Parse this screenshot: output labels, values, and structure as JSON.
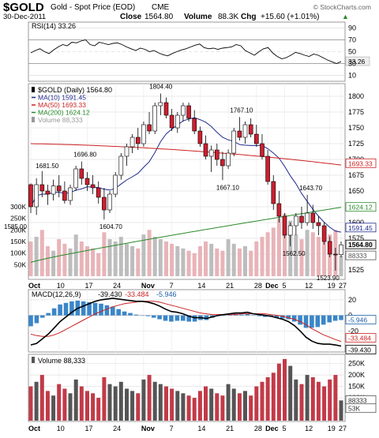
{
  "header": {
    "ticker": "$GOLD",
    "name": "Gold - Spot Price (EOD)",
    "exchange": "CME",
    "date": "30-Dec-2011",
    "close_label": "Close",
    "close_value": "1564.80",
    "volume_label": "Volume",
    "volume_value": "88.3K",
    "chg_label": "Chg",
    "chg_value": "+15.60 (+1.01%)",
    "chg_arrow": "▲",
    "watermark": "© StockCharts.com"
  },
  "rsi": {
    "label": "RSI(14) 33.26",
    "ticks": [
      "90",
      "70",
      "50",
      "30",
      "10"
    ],
    "value_tag": "33.26",
    "values": [
      48,
      52,
      55,
      50,
      47,
      53,
      58,
      62,
      60,
      66,
      65,
      68,
      70,
      62,
      60,
      66,
      64,
      62,
      64,
      65,
      62,
      58,
      55,
      52,
      56,
      54,
      50,
      52,
      48,
      45,
      43,
      47,
      50,
      53,
      55,
      58,
      61,
      63,
      57,
      55,
      56,
      54,
      56,
      57,
      58,
      62,
      60,
      52,
      48,
      44,
      50,
      55,
      57,
      48,
      42,
      38,
      40,
      44,
      49,
      47,
      44,
      42,
      46,
      44,
      40,
      36,
      33,
      30,
      33.26
    ]
  },
  "price": {
    "legend": [
      {
        "text": "$GOLD (Daily) 1564.80",
        "color": "#000000",
        "icon": "bar-icon"
      },
      {
        "text": "MA(10) 1591.45",
        "color": "#1f2a8c",
        "icon": "line-icon"
      },
      {
        "text": "MA(50) 1693.33",
        "color": "#cc2222",
        "icon": "line-icon"
      },
      {
        "text": "MA(200) 1624.12",
        "color": "#2a8a2a",
        "icon": "line-icon"
      },
      {
        "text": "Volume 88,333",
        "color": "#999999",
        "icon": "bar-icon"
      }
    ],
    "ticks": [
      "1800",
      "1775",
      "1750",
      "1725",
      "1700",
      "1675",
      "1650",
      "1625",
      "1600",
      "1575",
      "1550",
      "1525"
    ],
    "vol_ticks": [
      "300K",
      "250K",
      "200K",
      "150K",
      "100K",
      "50K"
    ],
    "annotations": [
      "1681.50",
      "1696.80",
      "1604.70",
      "1804.40",
      "1667.10",
      "1767.10",
      "1643.70",
      "1562.50",
      "1523.90",
      "1585.00"
    ],
    "tags": [
      {
        "text": "1693.33",
        "color": "#cc2222"
      },
      {
        "text": "1624.12",
        "color": "#2a8a2a"
      },
      {
        "text": "1591.45",
        "color": "#1f2a8c"
      },
      {
        "text": "1564.80",
        "color": "#000000"
      },
      {
        "text": "88333",
        "color": "#555555"
      }
    ],
    "x_labels": [
      "Oct",
      "10",
      "17",
      "24",
      "Nov",
      "7",
      "14",
      "21",
      "28",
      "Dec",
      "5",
      "12",
      "19",
      "27"
    ]
  },
  "macd": {
    "label": "MACD(12,26,9)",
    "v1": "-39.430",
    "v2": "-33.484",
    "v3": "-5.946",
    "ticks": [
      "20",
      "0",
      "-20"
    ],
    "tags": [
      "-5.946",
      "-33.484",
      "-39.430"
    ],
    "line": [
      -38,
      -36,
      -30,
      -24,
      -16,
      -8,
      -2,
      4,
      9,
      12,
      15,
      18,
      20,
      21,
      22,
      21,
      20,
      19,
      18,
      18,
      17,
      15,
      12,
      8,
      5,
      4,
      2,
      -1,
      -3,
      -3,
      -4,
      -2,
      0,
      1,
      2,
      3,
      3,
      4,
      2,
      1,
      0,
      -1,
      -3,
      -5,
      -8,
      -13,
      -20,
      -28,
      -33,
      -36,
      -37,
      -37,
      -38,
      -39.43
    ],
    "signal": [
      -24,
      -26,
      -27,
      -27,
      -25,
      -22,
      -18,
      -14,
      -10,
      -6,
      -2,
      2,
      5,
      8,
      11,
      13,
      15,
      16,
      17,
      18,
      18,
      18,
      17,
      15,
      13,
      11,
      9,
      7,
      5,
      3,
      2,
      1,
      1,
      1,
      1,
      1,
      2,
      2,
      2,
      2,
      2,
      1,
      0,
      -1,
      -3,
      -5,
      -8,
      -12,
      -17,
      -21,
      -25,
      -28,
      -31,
      -33.484
    ]
  },
  "volume": {
    "label": "Volume 88,333",
    "ticks": [
      "250K",
      "200K",
      "150K",
      "100K",
      "50K"
    ],
    "tags": [
      "88333",
      "53K"
    ],
    "x_labels": [
      "Oct",
      "10",
      "17",
      "24",
      "Nov",
      "7",
      "14",
      "21",
      "28",
      "Dec",
      "5",
      "12",
      "19",
      "27"
    ]
  },
  "chart_data": {
    "type": "candlestick",
    "title": "$GOLD Gold - Spot Price (EOD) CME",
    "ohlc": [
      [
        1660,
        1662,
        1615,
        1625
      ],
      [
        1625,
        1670,
        1612,
        1660
      ],
      [
        1660,
        1681.5,
        1640,
        1650
      ],
      [
        1650,
        1660,
        1628,
        1645
      ],
      [
        1645,
        1668,
        1635,
        1658
      ],
      [
        1658,
        1675,
        1640,
        1650
      ],
      [
        1650,
        1665,
        1630,
        1635
      ],
      [
        1635,
        1660,
        1628,
        1655
      ],
      [
        1655,
        1690,
        1650,
        1685
      ],
      [
        1685,
        1696.8,
        1660,
        1670
      ],
      [
        1670,
        1680,
        1650,
        1660
      ],
      [
        1660,
        1675,
        1645,
        1655
      ],
      [
        1655,
        1665,
        1630,
        1640
      ],
      [
        1640,
        1655,
        1604.7,
        1620
      ],
      [
        1620,
        1650,
        1615,
        1645
      ],
      [
        1645,
        1680,
        1640,
        1675
      ],
      [
        1675,
        1710,
        1668,
        1705
      ],
      [
        1705,
        1725,
        1690,
        1720
      ],
      [
        1720,
        1740,
        1710,
        1735
      ],
      [
        1735,
        1750,
        1715,
        1725
      ],
      [
        1725,
        1760,
        1720,
        1755
      ],
      [
        1755,
        1775,
        1740,
        1745
      ],
      [
        1745,
        1790,
        1740,
        1785
      ],
      [
        1785,
        1804.4,
        1770,
        1790
      ],
      [
        1790,
        1798,
        1765,
        1770
      ],
      [
        1770,
        1780,
        1745,
        1750
      ],
      [
        1750,
        1775,
        1742,
        1770
      ],
      [
        1770,
        1790,
        1760,
        1785
      ],
      [
        1785,
        1790,
        1760,
        1765
      ],
      [
        1765,
        1778,
        1740,
        1745
      ],
      [
        1745,
        1752,
        1720,
        1725
      ],
      [
        1725,
        1738,
        1700,
        1705
      ],
      [
        1705,
        1722,
        1680,
        1715
      ],
      [
        1715,
        1725,
        1690,
        1700
      ],
      [
        1700,
        1712,
        1667.1,
        1690
      ],
      [
        1690,
        1716,
        1685,
        1710
      ],
      [
        1710,
        1750,
        1705,
        1745
      ],
      [
        1745,
        1767.1,
        1730,
        1735
      ],
      [
        1735,
        1760,
        1725,
        1755
      ],
      [
        1755,
        1765,
        1735,
        1740
      ],
      [
        1740,
        1755,
        1720,
        1725
      ],
      [
        1725,
        1740,
        1700,
        1705
      ],
      [
        1705,
        1715,
        1660,
        1665
      ],
      [
        1665,
        1675,
        1620,
        1630
      ],
      [
        1630,
        1650,
        1600,
        1610
      ],
      [
        1610,
        1615,
        1575,
        1580
      ],
      [
        1580,
        1600,
        1562.5,
        1595
      ],
      [
        1595,
        1615,
        1580,
        1610
      ],
      [
        1610,
        1625,
        1590,
        1600
      ],
      [
        1600,
        1643.7,
        1595,
        1615
      ],
      [
        1615,
        1628,
        1590,
        1600
      ],
      [
        1600,
        1610,
        1580,
        1595
      ],
      [
        1595,
        1600,
        1565,
        1570
      ],
      [
        1570,
        1578,
        1545,
        1550
      ],
      [
        1550,
        1560,
        1523.9,
        1549.2
      ],
      [
        1549.2,
        1570,
        1545,
        1564.8
      ]
    ],
    "volume": [
      150,
      170,
      200,
      130,
      110,
      160,
      140,
      120,
      180,
      150,
      130,
      120,
      100,
      190,
      160,
      150,
      170,
      140,
      130,
      120,
      180,
      200,
      170,
      160,
      150,
      140,
      130,
      120,
      110,
      100,
      130,
      150,
      140,
      120,
      110,
      160,
      140,
      120,
      130,
      110,
      150,
      170,
      190,
      210,
      250,
      270,
      240,
      180,
      160,
      200,
      190,
      170,
      150,
      180,
      200,
      88.333
    ],
    "ma10_last": 1591.45,
    "ma50_last": 1693.33,
    "ma200_last": 1624.12,
    "ylim": [
      1515,
      1815
    ],
    "x_tick_labels": [
      "Oct",
      "10",
      "17",
      "24",
      "Nov",
      "7",
      "14",
      "21",
      "28",
      "Dec",
      "5",
      "12",
      "19",
      "27"
    ]
  }
}
